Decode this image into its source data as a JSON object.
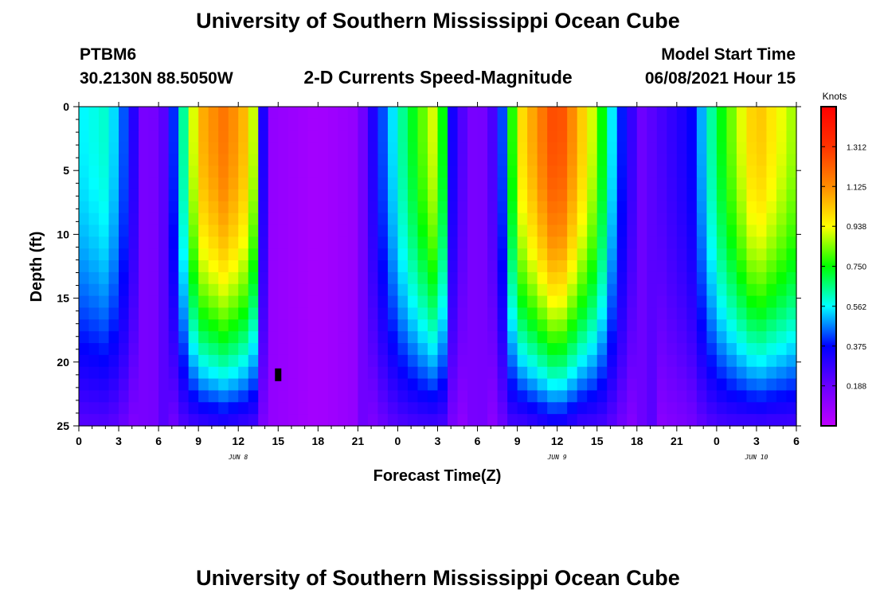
{
  "header": {
    "title": "University of Southern Mississippi Ocean Cube",
    "station": "PTBM6",
    "coords": "30.2130N  88.5050W",
    "product": "2-D Currents Speed-Magnitude",
    "start_label": "Model Start Time",
    "start_value": "06/08/2021 Hour 15"
  },
  "footer": {
    "title": "University of Southern Mississippi Ocean Cube"
  },
  "chart_data": {
    "type": "heatmap",
    "title": "2-D Currents Speed-Magnitude",
    "xlabel": "Forecast Time(Z)",
    "ylabel": "Depth (ft)",
    "x_range_hours": [
      0,
      54
    ],
    "y_range_ft": [
      0,
      25
    ],
    "x_tick_hours": [
      0,
      3,
      6,
      9,
      12,
      15,
      18,
      21,
      24,
      27,
      30,
      33,
      36,
      39,
      42,
      45,
      48,
      51,
      54
    ],
    "x_tick_labels": [
      "0",
      "3",
      "6",
      "9",
      "12",
      "15",
      "18",
      "21",
      "0",
      "3",
      "6",
      "9",
      "12",
      "15",
      "18",
      "21",
      "0",
      "3",
      "6"
    ],
    "y_ticks": [
      0,
      5,
      10,
      15,
      20,
      25
    ],
    "y_tick_labels": [
      "0",
      "5",
      "10",
      "15",
      "20",
      "25"
    ],
    "date_labels": [
      {
        "text": "JUN 8",
        "hour": 12
      },
      {
        "text": "JUN 9",
        "hour": 36
      },
      {
        "text": "JUN 10",
        "hour": 51
      }
    ],
    "colorbar": {
      "unit": "Knots",
      "range": [
        0,
        1.5
      ],
      "ticks": [
        0.188,
        0.375,
        0.562,
        0.75,
        0.938,
        1.125,
        1.312
      ],
      "tick_labels": [
        "0.188",
        "0.375",
        "0.562",
        "0.750",
        "0.938",
        "1.125",
        "1.312"
      ],
      "colors": [
        "#c000ff",
        "#6a00ff",
        "#0000ff",
        "#00ffff",
        "#00ff00",
        "#ffff00",
        "#ff8c00",
        "#ff3300",
        "#ff0000"
      ]
    },
    "marker": {
      "hour": 15,
      "depth_ft": 21,
      "color": "#000000"
    },
    "time_profile_knots": [
      {
        "h": 0,
        "v": 0.55
      },
      {
        "h": 2,
        "v": 0.6
      },
      {
        "h": 3,
        "v": 0.5
      },
      {
        "h": 4.3,
        "v": 0.28
      },
      {
        "h": 5,
        "v": 0.13
      },
      {
        "h": 6.3,
        "v": 0.2
      },
      {
        "h": 7.5,
        "v": 0.5
      },
      {
        "h": 9,
        "v": 1.05
      },
      {
        "h": 11,
        "v": 1.18
      },
      {
        "h": 13,
        "v": 1.0
      },
      {
        "h": 13.8,
        "v": 0.35
      },
      {
        "h": 14.5,
        "v": 0.1
      },
      {
        "h": 18,
        "v": 0.06
      },
      {
        "h": 21,
        "v": 0.1
      },
      {
        "h": 22,
        "v": 0.3
      },
      {
        "h": 24,
        "v": 0.6
      },
      {
        "h": 27,
        "v": 0.95
      },
      {
        "h": 28.2,
        "v": 0.3
      },
      {
        "h": 30,
        "v": 0.12
      },
      {
        "h": 31.6,
        "v": 0.3
      },
      {
        "h": 33,
        "v": 0.95
      },
      {
        "h": 36,
        "v": 1.3
      },
      {
        "h": 39,
        "v": 0.85
      },
      {
        "h": 40.5,
        "v": 0.45
      },
      {
        "h": 42.3,
        "v": 0.18
      },
      {
        "h": 46,
        "v": 0.35
      },
      {
        "h": 48,
        "v": 0.7
      },
      {
        "h": 51,
        "v": 1.05
      },
      {
        "h": 54,
        "v": 0.85
      }
    ]
  }
}
